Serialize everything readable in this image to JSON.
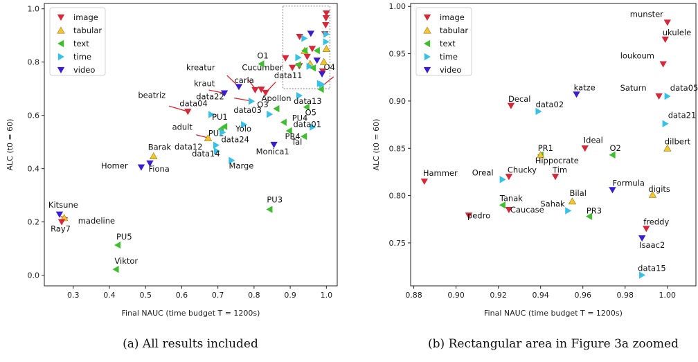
{
  "colors": {
    "image": "#d62839",
    "tabular": "#f2c531",
    "text": "#3fbf2f",
    "time": "#35c2e8",
    "video": "#3b1ccf",
    "arrow": "#e0202a"
  },
  "chart_data": [
    {
      "type": "scatter",
      "xlabel": "Final NAUC (time budget T = 1200s)",
      "ylabel": "ALC (t0 = 60)",
      "xlim": [
        0.22,
        1.03
      ],
      "ylim": [
        -0.04,
        1.02
      ],
      "xticks": [
        "0.3",
        "0.4",
        "0.5",
        "0.6",
        "0.7",
        "0.8",
        "0.9",
        "1.0"
      ],
      "yticks": [
        "0.0",
        "0.2",
        "0.4",
        "0.6",
        "0.8",
        "1.0"
      ],
      "legend": {
        "position": "top-left",
        "entries": [
          "image",
          "tabular",
          "text",
          "time",
          "video"
        ]
      },
      "caption": "(a) All results included",
      "zoom_box": {
        "x": [
          0.88,
          1.01
        ],
        "y": [
          0.7,
          1.01
        ]
      },
      "points": [
        {
          "name": "Kitsune",
          "kind": "video",
          "x": 0.262,
          "y": 0.228
        },
        {
          "name": "madeline",
          "kind": "tabular",
          "x": 0.275,
          "y": 0.215
        },
        {
          "name": "Ray7",
          "kind": "image",
          "x": 0.268,
          "y": 0.2
        },
        {
          "name": "PU5",
          "kind": "text",
          "x": 0.423,
          "y": 0.113
        },
        {
          "name": "Viktor",
          "kind": "text",
          "x": 0.418,
          "y": 0.022
        },
        {
          "name": "Barak",
          "kind": "tabular",
          "x": 0.522,
          "y": 0.447
        },
        {
          "name": "Homer",
          "kind": "video",
          "x": 0.488,
          "y": 0.405
        },
        {
          "name": "Fiona",
          "kind": "video",
          "x": 0.512,
          "y": 0.42
        },
        {
          "name": "beatriz",
          "kind": "image",
          "x": 0.617,
          "y": 0.614
        },
        {
          "name": "data04",
          "kind": "time",
          "x": 0.682,
          "y": 0.603
        },
        {
          "name": "adult",
          "kind": "tabular",
          "x": 0.673,
          "y": 0.515
        },
        {
          "name": "data12",
          "kind": "time",
          "x": 0.695,
          "y": 0.488
        },
        {
          "name": "PU2",
          "kind": "text",
          "x": 0.708,
          "y": 0.548
        },
        {
          "name": "PU1",
          "kind": "text",
          "x": 0.718,
          "y": 0.558
        },
        {
          "name": "data24",
          "kind": "time",
          "x": 0.713,
          "y": 0.536
        },
        {
          "name": "data14",
          "kind": "time",
          "x": 0.697,
          "y": 0.466
        },
        {
          "name": "Marge",
          "kind": "time",
          "x": 0.738,
          "y": 0.431
        },
        {
          "name": "Monica1",
          "kind": "video",
          "x": 0.855,
          "y": 0.49
        },
        {
          "name": "Yolo",
          "kind": "time",
          "x": 0.772,
          "y": 0.565
        },
        {
          "name": "kraut",
          "kind": "video",
          "x": 0.718,
          "y": 0.683
        },
        {
          "name": "kreatur",
          "kind": "video",
          "x": 0.758,
          "y": 0.707
        },
        {
          "name": "carla",
          "kind": "image",
          "x": 0.803,
          "y": 0.695
        },
        {
          "name": "data22",
          "kind": "time",
          "x": 0.793,
          "y": 0.653
        },
        {
          "name": "Cucumber",
          "kind": "image",
          "x": 0.82,
          "y": 0.697
        },
        {
          "name": "Apollon",
          "kind": "image",
          "x": 0.832,
          "y": 0.685
        },
        {
          "name": "O1",
          "kind": "text",
          "x": 0.82,
          "y": 0.793
        },
        {
          "name": "data03",
          "kind": "time",
          "x": 0.843,
          "y": 0.604
        },
        {
          "name": "O3",
          "kind": "text",
          "x": 0.862,
          "y": 0.625
        },
        {
          "name": "PU4",
          "kind": "text",
          "x": 0.882,
          "y": 0.574
        },
        {
          "name": "O5",
          "kind": "text",
          "x": 0.945,
          "y": 0.631
        },
        {
          "name": "PR4",
          "kind": "text",
          "x": 0.897,
          "y": 0.542
        },
        {
          "name": "Tal",
          "kind": "text",
          "x": 0.938,
          "y": 0.521
        },
        {
          "name": "data01",
          "kind": "time",
          "x": 0.962,
          "y": 0.556
        },
        {
          "name": "data13",
          "kind": "time",
          "x": 0.925,
          "y": 0.674
        },
        {
          "name": "data11",
          "kind": "time",
          "x": 0.982,
          "y": 0.719
        },
        {
          "name": "O4",
          "kind": "text",
          "x": 0.985,
          "y": 0.698
        },
        {
          "name": "PU3",
          "kind": "text",
          "x": 0.843,
          "y": 0.247
        },
        {
          "name": "",
          "kind": "image",
          "x": 0.887,
          "y": 0.815
        },
        {
          "name": "",
          "kind": "image",
          "x": 0.906,
          "y": 0.779
        },
        {
          "name": "",
          "kind": "image",
          "x": 0.926,
          "y": 0.895
        },
        {
          "name": "",
          "kind": "image",
          "x": 0.925,
          "y": 0.785
        },
        {
          "name": "",
          "kind": "image",
          "x": 0.947,
          "y": 0.82
        },
        {
          "name": "",
          "kind": "image",
          "x": 0.961,
          "y": 0.85
        },
        {
          "name": "",
          "kind": "image",
          "x": 0.99,
          "y": 0.765
        },
        {
          "name": "",
          "kind": "image",
          "x": 0.996,
          "y": 0.905
        },
        {
          "name": "",
          "kind": "image",
          "x": 0.998,
          "y": 0.939
        },
        {
          "name": "",
          "kind": "image",
          "x": 0.999,
          "y": 0.965
        },
        {
          "name": "",
          "kind": "image",
          "x": 1.0,
          "y": 0.983
        },
        {
          "name": "",
          "kind": "tabular",
          "x": 0.94,
          "y": 0.843
        },
        {
          "name": "",
          "kind": "tabular",
          "x": 0.955,
          "y": 0.794
        },
        {
          "name": "",
          "kind": "tabular",
          "x": 0.993,
          "y": 0.801
        },
        {
          "name": "",
          "kind": "tabular",
          "x": 1.0,
          "y": 0.85
        },
        {
          "name": "",
          "kind": "text",
          "x": 0.922,
          "y": 0.79
        },
        {
          "name": "",
          "kind": "text",
          "x": 0.94,
          "y": 0.843
        },
        {
          "name": "",
          "kind": "text",
          "x": 0.963,
          "y": 0.778
        },
        {
          "name": "",
          "kind": "text",
          "x": 0.974,
          "y": 0.843
        },
        {
          "name": "",
          "kind": "time",
          "x": 0.922,
          "y": 0.817
        },
        {
          "name": "",
          "kind": "time",
          "x": 0.939,
          "y": 0.889
        },
        {
          "name": "",
          "kind": "time",
          "x": 0.953,
          "y": 0.784
        },
        {
          "name": "",
          "kind": "time",
          "x": 0.988,
          "y": 0.716
        },
        {
          "name": "",
          "kind": "time",
          "x": 0.999,
          "y": 0.876
        },
        {
          "name": "",
          "kind": "time",
          "x": 1.0,
          "y": 0.905
        },
        {
          "name": "",
          "kind": "video",
          "x": 0.957,
          "y": 0.907
        },
        {
          "name": "",
          "kind": "video",
          "x": 0.974,
          "y": 0.806
        },
        {
          "name": "",
          "kind": "video",
          "x": 0.988,
          "y": 0.755
        }
      ],
      "arrows": [
        {
          "from": [
            0.285,
            0.215
          ],
          "to": [
            0.265,
            0.22
          ]
        },
        {
          "from": [
            0.565,
            0.635
          ],
          "to": [
            0.617,
            0.614
          ]
        },
        {
          "from": [
            0.64,
            0.527
          ],
          "to": [
            0.672,
            0.516
          ]
        },
        {
          "from": [
            0.725,
            0.75
          ],
          "to": [
            0.756,
            0.71
          ]
        },
        {
          "from": [
            0.745,
            0.665
          ],
          "to": [
            0.792,
            0.654
          ]
        },
        {
          "from": [
            0.86,
            0.725
          ],
          "to": [
            0.833,
            0.687
          ]
        },
        {
          "from": [
            0.783,
            0.735
          ],
          "to": [
            0.805,
            0.697
          ]
        },
        {
          "from": [
            0.675,
            0.695
          ],
          "to": [
            0.716,
            0.684
          ]
        },
        {
          "from": [
            1.02,
            0.745
          ],
          "to": [
            0.988,
            0.71
          ]
        }
      ]
    },
    {
      "type": "scatter",
      "xlabel": "Final NAUC (time budget T = 1200s)",
      "ylabel": "ALC (t0 = 60)",
      "xlim": [
        0.8785,
        1.0135
      ],
      "ylim": [
        0.7046,
        1.0031
      ],
      "xticks": [
        "0.88",
        "0.90",
        "0.92",
        "0.94",
        "0.96",
        "0.98",
        "1.00"
      ],
      "yticks": [
        "0.75",
        "0.80",
        "0.85",
        "0.90",
        "0.95",
        "1.00"
      ],
      "legend": {
        "position": "top-left",
        "entries": [
          "image",
          "tabular",
          "text",
          "time",
          "video"
        ]
      },
      "caption": "(b) Rectangular area in Figure 3a zoomed",
      "points": [
        {
          "name": "munster",
          "kind": "image",
          "x": 1.0,
          "y": 0.983
        },
        {
          "name": "ukulele",
          "kind": "image",
          "x": 0.999,
          "y": 0.965
        },
        {
          "name": "loukoum",
          "kind": "image",
          "x": 0.998,
          "y": 0.939
        },
        {
          "name": "Saturn",
          "kind": "image",
          "x": 0.996,
          "y": 0.905
        },
        {
          "name": "data05",
          "kind": "time",
          "x": 1.0,
          "y": 0.905
        },
        {
          "name": "katze",
          "kind": "video",
          "x": 0.957,
          "y": 0.907
        },
        {
          "name": "Decal",
          "kind": "image",
          "x": 0.926,
          "y": 0.895
        },
        {
          "name": "data02",
          "kind": "time",
          "x": 0.939,
          "y": 0.889
        },
        {
          "name": "data21",
          "kind": "time",
          "x": 0.999,
          "y": 0.876
        },
        {
          "name": "dilbert",
          "kind": "tabular",
          "x": 1.0,
          "y": 0.85
        },
        {
          "name": "PR1",
          "kind": "text",
          "x": 0.94,
          "y": 0.843
        },
        {
          "name": "Hippocrate",
          "kind": "tabular",
          "x": 0.94,
          "y": 0.843
        },
        {
          "name": "Ideal",
          "kind": "image",
          "x": 0.961,
          "y": 0.85
        },
        {
          "name": "O2",
          "kind": "text",
          "x": 0.974,
          "y": 0.843
        },
        {
          "name": "Hammer",
          "kind": "image",
          "x": 0.885,
          "y": 0.815
        },
        {
          "name": "Oreal",
          "kind": "time",
          "x": 0.922,
          "y": 0.817
        },
        {
          "name": "Chucky",
          "kind": "image",
          "x": 0.925,
          "y": 0.82
        },
        {
          "name": "Tim",
          "kind": "image",
          "x": 0.947,
          "y": 0.82
        },
        {
          "name": "Formula",
          "kind": "video",
          "x": 0.974,
          "y": 0.806
        },
        {
          "name": "digits",
          "kind": "tabular",
          "x": 0.993,
          "y": 0.801
        },
        {
          "name": "Bilal",
          "kind": "tabular",
          "x": 0.955,
          "y": 0.794
        },
        {
          "name": "Tanak",
          "kind": "text",
          "x": 0.922,
          "y": 0.79
        },
        {
          "name": "pedro",
          "kind": "image",
          "x": 0.906,
          "y": 0.779
        },
        {
          "name": "Caucase",
          "kind": "image",
          "x": 0.925,
          "y": 0.785
        },
        {
          "name": "Sahak",
          "kind": "time",
          "x": 0.953,
          "y": 0.784
        },
        {
          "name": "PR3",
          "kind": "text",
          "x": 0.963,
          "y": 0.778
        },
        {
          "name": "freddy",
          "kind": "image",
          "x": 0.99,
          "y": 0.765
        },
        {
          "name": "Isaac2",
          "kind": "video",
          "x": 0.988,
          "y": 0.755
        },
        {
          "name": "data15",
          "kind": "time",
          "x": 0.988,
          "y": 0.716
        }
      ]
    }
  ]
}
